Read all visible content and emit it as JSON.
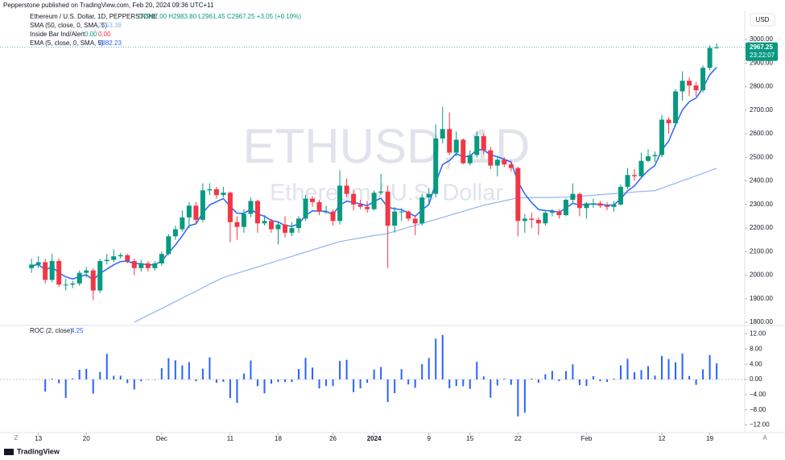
{
  "publisher": "Pepperstone published on TradingView.com, Feb 20, 2024 09:36 UTC+11",
  "footer": "TradingView",
  "toolbar": {
    "left": "Z",
    "right": "A"
  },
  "chart_data": [
    {
      "type": "candlestick",
      "title": "Ethereum / U.S. Dollar, 1D, PEPPERSTONE",
      "ohlc_text": "O2967.00 H2983.80 L2961.45 C2967.25 +3.05 (+0.10%)",
      "watermark": "ETHUSD, 1D",
      "watermark_subtitle": "Ethereum / U.S. Dollar",
      "currency": "USD",
      "countdown": "23:22:07",
      "indicator": {
        "name": "Inside Bar Ind/Alert",
        "values": [
          "0.00",
          "0.00"
        ]
      },
      "up_color": "#089981",
      "down_color": "#f23645",
      "grid": false,
      "xlim": [
        -4.6,
        104.1
      ],
      "ylim": [
        1790,
        3120
      ],
      "yticks": [
        {
          "value": 1800,
          "label": "1800.00"
        },
        {
          "value": 1900,
          "label": "1900.00"
        },
        {
          "value": 2000,
          "label": "2000.00"
        },
        {
          "value": 2100,
          "label": "2100.00"
        },
        {
          "value": 2200,
          "label": "2200.00"
        },
        {
          "value": 2300,
          "label": "2300.00"
        },
        {
          "value": 2400,
          "label": "2400.00"
        },
        {
          "value": 2500,
          "label": "2500.00"
        },
        {
          "value": 2600,
          "label": "2600.00"
        },
        {
          "value": 2700,
          "label": "2700.00"
        },
        {
          "value": 2800,
          "label": "2800.00"
        },
        {
          "value": 2900,
          "label": "2900.00"
        },
        {
          "value": 3000,
          "label": "3000.00"
        }
      ],
      "candles": [
        [
          2030,
          2070,
          2010,
          2045
        ],
        [
          2045,
          2080,
          2030,
          2055
        ],
        [
          2055,
          2070,
          1965,
          1980
        ],
        [
          1980,
          2090,
          1970,
          2060
        ],
        [
          2060,
          2070,
          1950,
          1960
        ],
        [
          1960,
          1985,
          1935,
          1960
        ],
        [
          1960,
          1975,
          1945,
          1965
        ],
        [
          1965,
          2020,
          1955,
          2010
        ],
        [
          2010,
          2035,
          1990,
          2020
        ],
        [
          2020,
          2030,
          1895,
          1935
        ],
        [
          1935,
          2070,
          1925,
          2060
        ],
        [
          2060,
          2090,
          2045,
          2065
        ],
        [
          2065,
          2110,
          2055,
          2080
        ],
        [
          2080,
          2095,
          2070,
          2085
        ],
        [
          2085,
          2090,
          2050,
          2060
        ],
        [
          2060,
          2070,
          2000,
          2030
        ],
        [
          2030,
          2065,
          2015,
          2050
        ],
        [
          2050,
          2060,
          2015,
          2030
        ],
        [
          2030,
          2060,
          2020,
          2050
        ],
        [
          2050,
          2100,
          2040,
          2090
        ],
        [
          2090,
          2175,
          2085,
          2165
        ],
        [
          2165,
          2210,
          2150,
          2195
        ],
        [
          2195,
          2275,
          2185,
          2245
        ],
        [
          2245,
          2310,
          2200,
          2295
        ],
        [
          2295,
          2310,
          2215,
          2235
        ],
        [
          2235,
          2390,
          2225,
          2360
        ],
        [
          2360,
          2390,
          2340,
          2365
        ],
        [
          2365,
          2375,
          2325,
          2340
        ],
        [
          2340,
          2375,
          2330,
          2350
        ],
        [
          2350,
          2355,
          2140,
          2225
        ],
        [
          2225,
          2250,
          2150,
          2205
        ],
        [
          2205,
          2280,
          2180,
          2260
        ],
        [
          2260,
          2330,
          2245,
          2315
        ],
        [
          2315,
          2320,
          2180,
          2220
        ],
        [
          2220,
          2255,
          2210,
          2230
        ],
        [
          2230,
          2240,
          2180,
          2195
        ],
        [
          2195,
          2225,
          2130,
          2215
        ],
        [
          2215,
          2250,
          2160,
          2180
        ],
        [
          2180,
          2225,
          2165,
          2200
        ],
        [
          2200,
          2250,
          2180,
          2240
        ],
        [
          2240,
          2340,
          2230,
          2325
        ],
        [
          2325,
          2335,
          2290,
          2310
        ],
        [
          2310,
          2320,
          2255,
          2270
        ],
        [
          2270,
          2295,
          2260,
          2270
        ],
        [
          2270,
          2280,
          2210,
          2230
        ],
        [
          2230,
          2445,
          2215,
          2380
        ],
        [
          2380,
          2410,
          2330,
          2345
        ],
        [
          2345,
          2360,
          2275,
          2300
        ],
        [
          2300,
          2320,
          2280,
          2290
        ],
        [
          2290,
          2315,
          2265,
          2280
        ],
        [
          2280,
          2360,
          2275,
          2350
        ],
        [
          2350,
          2430,
          2340,
          2355
        ],
        [
          2355,
          2380,
          2030,
          2210
        ],
        [
          2210,
          2290,
          2180,
          2270
        ],
        [
          2270,
          2285,
          2230,
          2270
        ],
        [
          2270,
          2275,
          2230,
          2240
        ],
        [
          2240,
          2255,
          2170,
          2220
        ],
        [
          2220,
          2345,
          2210,
          2330
        ],
        [
          2330,
          2370,
          2300,
          2345
        ],
        [
          2345,
          2640,
          2330,
          2580
        ],
        [
          2580,
          2715,
          2560,
          2620
        ],
        [
          2620,
          2690,
          2510,
          2520
        ],
        [
          2520,
          2610,
          2505,
          2575
        ],
        [
          2575,
          2580,
          2470,
          2475
        ],
        [
          2475,
          2530,
          2465,
          2510
        ],
        [
          2510,
          2610,
          2500,
          2590
        ],
        [
          2590,
          2600,
          2515,
          2530
        ],
        [
          2530,
          2545,
          2450,
          2465
        ],
        [
          2465,
          2505,
          2420,
          2490
        ],
        [
          2490,
          2500,
          2460,
          2470
        ],
        [
          2470,
          2485,
          2440,
          2455
        ],
        [
          2455,
          2460,
          2165,
          2230
        ],
        [
          2230,
          2260,
          2180,
          2240
        ],
        [
          2240,
          2265,
          2200,
          2235
        ],
        [
          2235,
          2245,
          2170,
          2220
        ],
        [
          2220,
          2275,
          2210,
          2265
        ],
        [
          2265,
          2280,
          2250,
          2270
        ],
        [
          2270,
          2280,
          2240,
          2255
        ],
        [
          2255,
          2325,
          2250,
          2320
        ],
        [
          2320,
          2390,
          2305,
          2345
        ],
        [
          2345,
          2350,
          2250,
          2285
        ],
        [
          2285,
          2310,
          2240,
          2305
        ],
        [
          2305,
          2325,
          2285,
          2305
        ],
        [
          2305,
          2315,
          2285,
          2295
        ],
        [
          2295,
          2310,
          2275,
          2290
        ],
        [
          2290,
          2315,
          2270,
          2300
        ],
        [
          2300,
          2385,
          2295,
          2375
        ],
        [
          2375,
          2455,
          2365,
          2425
        ],
        [
          2425,
          2450,
          2400,
          2420
        ],
        [
          2420,
          2520,
          2415,
          2485
        ],
        [
          2485,
          2535,
          2480,
          2505
        ],
        [
          2505,
          2525,
          2480,
          2510
        ],
        [
          2510,
          2680,
          2500,
          2660
        ],
        [
          2660,
          2670,
          2600,
          2645
        ],
        [
          2645,
          2790,
          2630,
          2780
        ],
        [
          2780,
          2865,
          2740,
          2825
        ],
        [
          2825,
          2840,
          2760,
          2805
        ],
        [
          2805,
          2820,
          2760,
          2785
        ],
        [
          2785,
          2890,
          2775,
          2880
        ],
        [
          2880,
          2975,
          2870,
          2964.2
        ],
        [
          2967,
          2983.8,
          2961.45,
          2967.25
        ]
      ],
      "series": [
        {
          "name": "SMA (50, close, 0, SMA, 5)",
          "color": "#90b4f0",
          "values": [
            null,
            null,
            null,
            null,
            null,
            null,
            null,
            null,
            null,
            null,
            null,
            null,
            null,
            null,
            null,
            1800,
            1815,
            1830,
            1844,
            1858,
            1873,
            1888,
            1903,
            1918,
            1932,
            1947,
            1962,
            1976,
            1990,
            1999,
            2008,
            2017,
            2026,
            2035,
            2044,
            2053,
            2062,
            2071,
            2080,
            2089,
            2098,
            2107,
            2116,
            2125,
            2134,
            2143,
            2148,
            2153,
            2158,
            2163,
            2168,
            2172,
            2177,
            2186,
            2194,
            2203,
            2211,
            2220,
            2228,
            2237,
            2245,
            2254,
            2263,
            2271,
            2280,
            2288,
            2297,
            2303,
            2309,
            2316,
            2322,
            2328,
            2329,
            2329,
            2330,
            2330,
            2330,
            2331,
            2331,
            2333,
            2335,
            2337,
            2339,
            2342,
            2344,
            2346,
            2348,
            2350,
            2353,
            2355,
            2357,
            2359,
            2369,
            2380,
            2390,
            2401,
            2411,
            2422,
            2432,
            2443,
            2453.38
          ]
        },
        {
          "name": "EMA (5, close, 0, SMA, 5)",
          "color": "#2962ff",
          "values": [
            2040,
            2045,
            2023,
            2035,
            2010,
            1993,
            1984,
            1993,
            2002,
            1980,
            2007,
            2026,
            2044,
            2058,
            2059,
            2049,
            2049,
            2043,
            2045,
            2060,
            2095,
            2128,
            2167,
            2210,
            2218,
            2265,
            2298,
            2312,
            2325,
            2292,
            2263,
            2262,
            2280,
            2260,
            2250,
            2232,
            2226,
            2211,
            2207,
            2218,
            2254,
            2273,
            2272,
            2271,
            2257,
            2298,
            2314,
            2309,
            2303,
            2295,
            2313,
            2327,
            2288,
            2282,
            2278,
            2265,
            2250,
            2277,
            2300,
            2393,
            2469,
            2486,
            2516,
            2502,
            2505,
            2533,
            2532,
            2510,
            2503,
            2492,
            2480,
            2397,
            2345,
            2308,
            2279,
            2274,
            2273,
            2267,
            2285,
            2305,
            2298,
            2300,
            2302,
            2300,
            2297,
            2298,
            2324,
            2358,
            2379,
            2414,
            2444,
            2466,
            2531,
            2569,
            2639,
            2701,
            2736,
            2752,
            2795,
            2851,
            2882.23
          ]
        }
      ]
    },
    {
      "type": "bar",
      "title": "ROC (2, close)",
      "color": "#2962ff",
      "xlim": [
        -4.6,
        104.1
      ],
      "ylim": [
        -14,
        14
      ],
      "yticks": [
        {
          "value": -12,
          "label": "−12.00"
        },
        {
          "value": -8,
          "label": "−8.00"
        },
        {
          "value": -4,
          "label": "−4.00"
        },
        {
          "value": 0,
          "label": "0.00"
        },
        {
          "value": 4,
          "label": "4.00"
        },
        {
          "value": 8,
          "label": "8.00"
        },
        {
          "value": 12,
          "label": "12.00"
        }
      ],
      "xticks": [
        {
          "value": 1,
          "label": "13"
        },
        {
          "value": 8,
          "label": "20"
        },
        {
          "value": 19,
          "label": "Dec"
        },
        {
          "value": 29,
          "label": "11"
        },
        {
          "value": 36,
          "label": "18"
        },
        {
          "value": 44,
          "label": "26"
        },
        {
          "value": 50,
          "label": "2024"
        },
        {
          "value": 58,
          "label": "9"
        },
        {
          "value": 64,
          "label": "15"
        },
        {
          "value": 71,
          "label": "22"
        },
        {
          "value": 81,
          "label": "Feb"
        },
        {
          "value": 92,
          "label": "12"
        },
        {
          "value": 99,
          "label": "19"
        }
      ],
      "values": [
        null,
        null,
        -3.18,
        0.24,
        -1.01,
        -4.85,
        0.26,
        2.55,
        2.8,
        -3.73,
        1.98,
        6.72,
        0.97,
        0.97,
        -0.96,
        -2.64,
        -0.49,
        0,
        0,
        2.96,
        5.61,
        5.02,
        3.7,
        4.56,
        -0.45,
        2.83,
        5.82,
        -0.85,
        -0.63,
        -4.91,
        -6.17,
        1.57,
        4.99,
        -1.77,
        -3.67,
        -1.13,
        -0.67,
        -0.68,
        -0.68,
        2.75,
        5.68,
        3.13,
        -2.37,
        -1.73,
        -1.76,
        4.85,
        5.16,
        -3.36,
        -2.35,
        -0.87,
        2.62,
        3.29,
        -5.96,
        -3.61,
        2.71,
        -1.32,
        -2.2,
        4.02,
        5.63,
        10.73,
        11.73,
        -2.33,
        -1.72,
        -1.79,
        -2.52,
        4.65,
        0.8,
        -4.83,
        -1.58,
        0.2,
        -1.41,
        -9.72,
        -8.76,
        0.22,
        -0.89,
        1.34,
        2.25,
        -0.44,
        2.2,
        3.99,
        -1.51,
        -1.71,
        0.88,
        -0.43,
        -0.65,
        0.22,
        3.71,
        5.43,
        1.89,
        2.47,
        3.51,
        1.01,
        6.19,
        5.38,
        4.51,
        6.81,
        0.9,
        -1.42,
        2.67,
        6.43,
        4.25
      ]
    }
  ]
}
